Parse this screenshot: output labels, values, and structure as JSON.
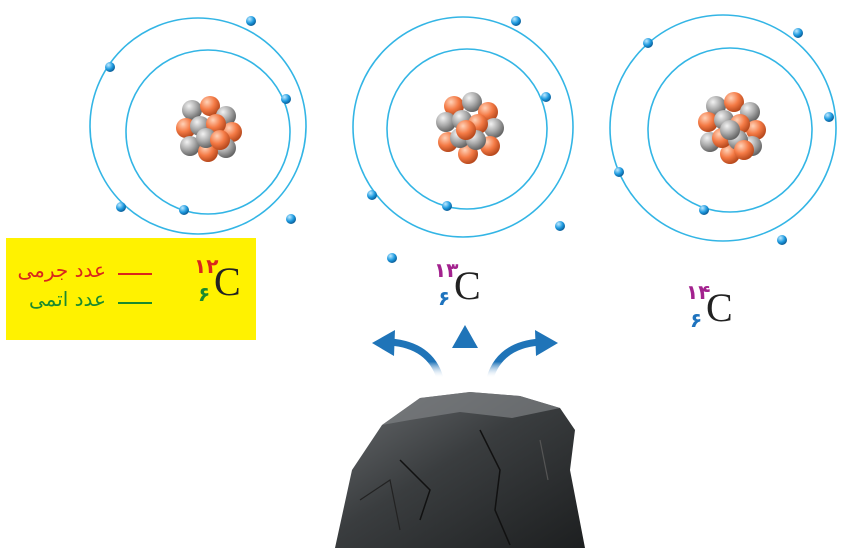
{
  "element_symbol": "C",
  "isotopes": [
    {
      "mass_number": "۱۲",
      "atomic_number": "۶"
    },
    {
      "mass_number": "۱۳",
      "atomic_number": "۶"
    },
    {
      "mass_number": "۱۴",
      "atomic_number": "۶"
    }
  ],
  "legend": {
    "mass_label": "عدد جرمی",
    "atomic_label": "عدد اتمی"
  },
  "colors": {
    "orbit": "#33b5e5",
    "electron": "#1e9be0",
    "proton": "#f47a45",
    "neutron": "#a9a9a9",
    "mass_number": "#a3228e",
    "atomic_number": "#1e73be",
    "highlight": "#fff200",
    "arrow": "#1f74b8",
    "rock": "#3a3d3f"
  }
}
